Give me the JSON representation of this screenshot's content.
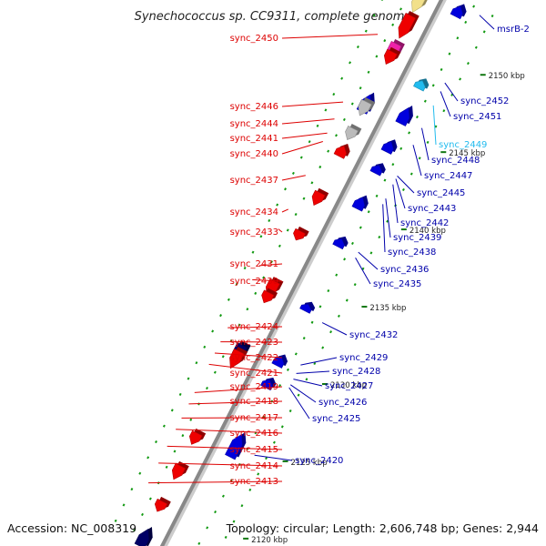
{
  "title": "Synechococcus sp. CC9311, complete genome",
  "accession": "Accession: NC_008319",
  "topology": "Topology: circular; Length: 2,606,748 bp; Genes: 2,944",
  "colors": {
    "left_label": "#dd0000",
    "right_label": "#0000aa",
    "highlight_label": "#22bbee",
    "backbone": "#888888",
    "forward_gene": "#ee0000",
    "reverse_gene": "#0000dd",
    "dark_gene": "#000066",
    "grey_gene": "#bbbbbb",
    "pink_gene": "#ee22aa",
    "yellow_gene": "#f2e08a",
    "dotted": "#119911"
  },
  "ticks": [
    "2150 kbp",
    "2145 kbp",
    "2140 kbp",
    "2135 kbp",
    "2130 kbp",
    "2125 kbp",
    "2120 kbp"
  ],
  "left_labels": [
    "sync_2450",
    "sync_2446",
    "sync_2444",
    "sync_2441",
    "sync_2440",
    "sync_2437",
    "sync_2434",
    "sync_2433",
    "sync_2431",
    "sync_2430",
    "sync_2424",
    "sync_2423",
    "sync_2422",
    "sync_2421",
    "sync_2419",
    "sync_2418",
    "sync_2417",
    "sync_2416",
    "sync_2415",
    "sync_2414",
    "sync_2413"
  ],
  "right_labels": [
    "msrB-2",
    "sync_2452",
    "sync_2451",
    "sync_2449",
    "sync_2448",
    "sync_2447",
    "sync_2445",
    "sync_2443",
    "sync_2442",
    "sync_2439",
    "sync_2438",
    "sync_2436",
    "sync_2435",
    "sync_2432",
    "sync_2429",
    "sync_2428",
    "sync_2427",
    "sync_2426",
    "sync_2425",
    "sync_2420"
  ],
  "genes": [
    {
      "t": 0.04,
      "side": 1,
      "dir": 1,
      "len": 0.028,
      "color": "yellow"
    },
    {
      "t": 0.08,
      "side": 1,
      "dir": 1,
      "len": 0.04,
      "color": "red"
    },
    {
      "t": 0.125,
      "side": 1,
      "dir": 1,
      "len": 0.03,
      "color": "pink"
    },
    {
      "t": 0.135,
      "side": 1,
      "dir": 1,
      "len": 0.022,
      "color": "red"
    },
    {
      "t": 0.215,
      "side": 1,
      "dir": -1,
      "len": 0.03,
      "color": "blue"
    },
    {
      "t": 0.225,
      "side": 1,
      "dir": 1,
      "len": 0.024,
      "color": "grey"
    },
    {
      "t": 0.27,
      "side": 1,
      "dir": 1,
      "len": 0.02,
      "color": "grey"
    },
    {
      "t": 0.3,
      "side": 1,
      "dir": -1,
      "len": 0.018,
      "color": "red"
    },
    {
      "t": 0.385,
      "side": 1,
      "dir": 1,
      "len": 0.022,
      "color": "red"
    },
    {
      "t": 0.45,
      "side": 1,
      "dir": 1,
      "len": 0.016,
      "color": "red"
    },
    {
      "t": 0.545,
      "side": 1,
      "dir": 1,
      "len": 0.028,
      "color": "red"
    },
    {
      "t": 0.56,
      "side": 1,
      "dir": 1,
      "len": 0.018,
      "color": "red"
    },
    {
      "t": 0.66,
      "side": 1,
      "dir": 1,
      "len": 0.032,
      "color": "dark"
    },
    {
      "t": 0.67,
      "side": 1,
      "dir": 1,
      "len": 0.03,
      "color": "red"
    },
    {
      "t": 0.81,
      "side": 1,
      "dir": 1,
      "len": 0.02,
      "color": "red"
    },
    {
      "t": 0.87,
      "side": 1,
      "dir": 1,
      "len": 0.024,
      "color": "red"
    },
    {
      "t": 0.93,
      "side": 1,
      "dir": 1,
      "len": 0.018,
      "color": "red"
    },
    {
      "t": 0.985,
      "side": 1,
      "dir": -1,
      "len": 0.03,
      "color": "dark"
    },
    {
      "t": 0.02,
      "side": -1,
      "dir": -1,
      "len": 0.018,
      "color": "blue"
    },
    {
      "t": 0.15,
      "side": -1,
      "dir": -1,
      "len": 0.014,
      "color": "highlight"
    },
    {
      "t": 0.205,
      "side": -1,
      "dir": -1,
      "len": 0.028,
      "color": "blue"
    },
    {
      "t": 0.26,
      "side": -1,
      "dir": -1,
      "len": 0.018,
      "color": "blue"
    },
    {
      "t": 0.3,
      "side": -1,
      "dir": -1,
      "len": 0.014,
      "color": "blue"
    },
    {
      "t": 0.36,
      "side": -1,
      "dir": -1,
      "len": 0.02,
      "color": "blue"
    },
    {
      "t": 0.43,
      "side": -1,
      "dir": -1,
      "len": 0.014,
      "color": "blue"
    },
    {
      "t": 0.545,
      "side": -1,
      "dir": -1,
      "len": 0.012,
      "color": "blue"
    },
    {
      "t": 0.64,
      "side": -1,
      "dir": -1,
      "len": 0.016,
      "color": "blue"
    },
    {
      "t": 0.68,
      "side": -1,
      "dir": -1,
      "len": 0.014,
      "color": "blue"
    },
    {
      "t": 0.79,
      "side": -1,
      "dir": -1,
      "len": 0.04,
      "color": "blue"
    }
  ]
}
